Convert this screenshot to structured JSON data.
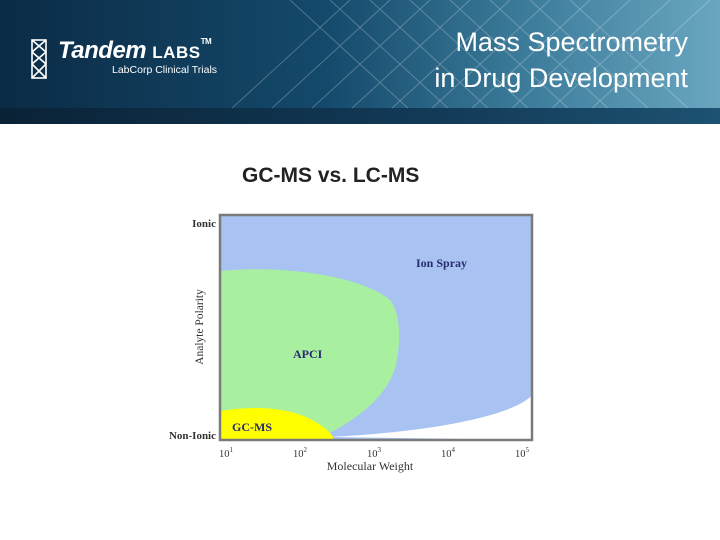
{
  "header": {
    "logo_main": "Tandem",
    "logo_labs": "LABS",
    "logo_tm": "TM",
    "logo_sub": "LabCorp Clinical Trials",
    "title_line1": "Mass Spectrometry",
    "title_line2": "in Drug Development"
  },
  "diagram": {
    "title": "GC-MS vs. LC-MS",
    "y_axis_label": "Analyte Polarity",
    "y_top_label": "Ionic",
    "y_bottom_label": "Non-Ionic",
    "x_axis_label": "Molecular Weight",
    "x_ticks": [
      {
        "base": "10",
        "exp": "1"
      },
      {
        "base": "10",
        "exp": "2"
      },
      {
        "base": "10",
        "exp": "3"
      },
      {
        "base": "10",
        "exp": "4"
      },
      {
        "base": "10",
        "exp": "5"
      }
    ],
    "regions": [
      {
        "label": "Ion Spray",
        "color": "#a8c3f2"
      },
      {
        "label": "APCI",
        "color": "#a8f0a0"
      },
      {
        "label": "GC-MS",
        "color": "#ffff00"
      }
    ],
    "border_color": "#7a7a7a"
  }
}
